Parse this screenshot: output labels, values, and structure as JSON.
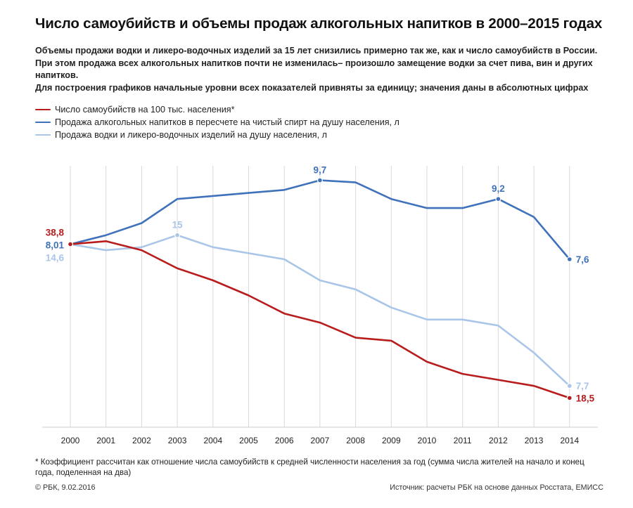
{
  "title": "Число самоубийств и объемы продаж алкогольных напитков в 2000–2015 годах",
  "subtitle": [
    "Объемы продажи водки и ликеро-водочных изделий за 15 лет снизились примерно так же, как и число самоубийств в России.",
    "При этом продажа всех алкогольных напитков почти не изменилась– произошло замещение водки за счет пива, вин и других напитков.",
    "Для построения графиков начальные уровни всех показателей привняты за единицу; значения даны в абсолютных цифрах"
  ],
  "legend": [
    {
      "label": "Число самоубийств на 100 тыс. населения*",
      "color": "#b81c1c"
    },
    {
      "label": "Продажа алкогольных напитков в пересчете на чистый спирт на душу населения, л",
      "color": "#3f72ba"
    },
    {
      "label": "Продажа водки и ликеро-водочных изделий на душу населения, л",
      "color": "#a9c5e8"
    }
  ],
  "chart_data": {
    "type": "line",
    "title": "Число самоубийств и объемы продаж алкогольных напитков в 2000–2015 годах",
    "xlabel": "",
    "ylabel": "",
    "grid": "vertical",
    "x": [
      "2000",
      "2001",
      "2002",
      "2003",
      "2004",
      "2005",
      "2006",
      "2007",
      "2008",
      "2009",
      "2010",
      "2011",
      "2012",
      "2013",
      "2014"
    ],
    "ylim": [
      0.4,
      1.26
    ],
    "series": [
      {
        "name": "Продажа алкогольных напитков в пересчете на чистый спирт на душу населения, л",
        "color": "#3f72ba",
        "values": [
          1.0,
          1.03,
          1.07,
          1.15,
          1.16,
          1.17,
          1.18,
          1.212,
          1.205,
          1.15,
          1.12,
          1.12,
          1.15,
          1.09,
          0.95
        ],
        "labels": [
          {
            "index": 0,
            "text": "8,01",
            "pos": "left"
          },
          {
            "index": 7,
            "text": "9,7",
            "pos": "top"
          },
          {
            "index": 12,
            "text": "9,2",
            "pos": "top"
          },
          {
            "index": 14,
            "text": "7,6",
            "pos": "right"
          }
        ]
      },
      {
        "name": "Продажа водки и ликеро-водочных изделий на душу населения, л",
        "color": "#a9c5e8",
        "values": [
          1.0,
          0.98,
          0.99,
          1.03,
          0.99,
          0.97,
          0.95,
          0.88,
          0.85,
          0.79,
          0.75,
          0.75,
          0.73,
          0.64,
          0.53
        ],
        "labels": [
          {
            "index": 0,
            "text": "14,6",
            "pos": "left-below"
          },
          {
            "index": 3,
            "text": "15",
            "pos": "top"
          },
          {
            "index": 14,
            "text": "7,7",
            "pos": "right"
          }
        ]
      },
      {
        "name": "Число самоубийств на 100 тыс. населения*",
        "color": "#b81c1c",
        "values": [
          1.0,
          1.01,
          0.98,
          0.92,
          0.88,
          0.83,
          0.77,
          0.74,
          0.69,
          0.68,
          0.61,
          0.57,
          0.55,
          0.53,
          0.49
        ],
        "labels": [
          {
            "index": 0,
            "text": "38,8",
            "pos": "left-above"
          },
          {
            "index": 14,
            "text": "18,5",
            "pos": "right"
          }
        ]
      }
    ]
  },
  "footnote": "* Коэффициент рассчитан как отношение числа самоубийств к средней численности населения за год (сумма числа жителей на начало и конец года, поделенная на два)",
  "footer": {
    "copyright": "© РБК, 9.02.2016",
    "source": "Источник: расчеты РБК на основе данных Росстата, ЕМИСС"
  }
}
